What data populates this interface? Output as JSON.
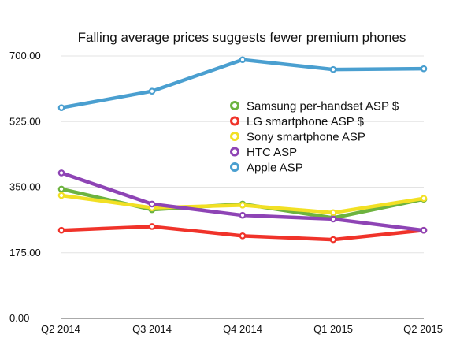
{
  "chart_data": {
    "type": "line",
    "title": "Falling average prices suggests fewer premium phones",
    "categories": [
      "Q2 2014",
      "Q3 2014",
      "Q4 2014",
      "Q1 2015",
      "Q2 2015"
    ],
    "y_ticks": [
      "0.00",
      "175.00",
      "350.00",
      "525.00",
      "700.00"
    ],
    "ylim": [
      0,
      700
    ],
    "grid": true,
    "legend_position": "right-center",
    "series": [
      {
        "name": "Samsung per-handset ASP $",
        "color": "#6db33f",
        "values": [
          345,
          290,
          305,
          268,
          318
        ]
      },
      {
        "name": "LG smartphone ASP $",
        "color": "#f0332a",
        "values": [
          235,
          245,
          220,
          210,
          235
        ]
      },
      {
        "name": "Sony smartphone ASP",
        "color": "#f2e024",
        "values": [
          328,
          295,
          302,
          282,
          320
        ]
      },
      {
        "name": "HTC ASP",
        "color": "#8e44b5",
        "values": [
          388,
          305,
          275,
          265,
          235
        ]
      },
      {
        "name": "Apple ASP",
        "color": "#4a9fd0",
        "values": [
          562,
          606,
          690,
          664,
          666
        ]
      }
    ]
  }
}
